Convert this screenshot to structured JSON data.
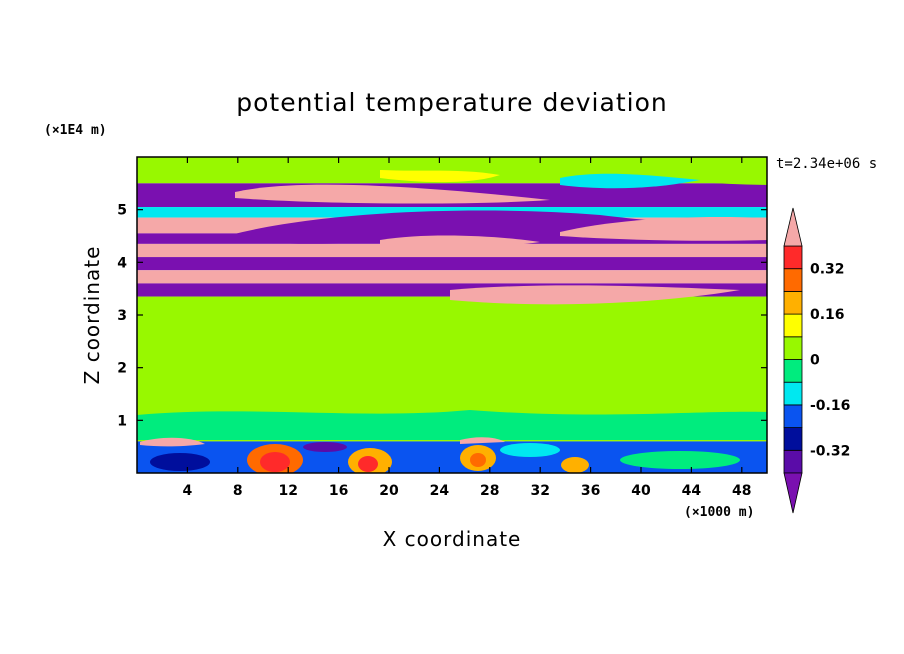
{
  "chart_data": {
    "type": "heatmap",
    "title": "potential temperature deviation",
    "xlabel": "X coordinate",
    "ylabel": "Z coordinate",
    "x_unit": "(×1000 m)",
    "y_unit": "(×1E4 m)",
    "time_label": "t=2.34e+06 s",
    "xlim": [
      0,
      50
    ],
    "ylim": [
      0,
      6
    ],
    "x_ticks": [
      4,
      8,
      12,
      16,
      20,
      24,
      28,
      32,
      36,
      40,
      44,
      48
    ],
    "y_ticks": [
      1,
      2,
      3,
      4,
      5
    ],
    "colorbar": {
      "levels": [
        -0.4,
        -0.32,
        -0.24,
        -0.16,
        -0.08,
        0,
        0.08,
        0.16,
        0.24,
        0.32,
        0.4
      ],
      "labels": [
        "-0.32",
        "-0.16",
        "0",
        "0.16",
        "0.32"
      ],
      "label_values": [
        -0.32,
        -0.16,
        0,
        0.16,
        0.32
      ],
      "colors": [
        "#5a0ca8",
        "#000e9c",
        "#0a54f0",
        "#00e8f0",
        "#00ec7e",
        "#98f800",
        "#ffff00",
        "#ffb000",
        "#ff6a00",
        "#ff2a2a"
      ],
      "under_color": "#7a10b0",
      "over_color": "#f5a8a8",
      "extend": "both"
    },
    "bands": [
      {
        "z": [
          5.5,
          6.0
        ],
        "value": 0.0
      },
      {
        "z": [
          5.05,
          5.5
        ],
        "value": -0.45
      },
      {
        "z": [
          4.85,
          5.05
        ],
        "value": -0.1
      },
      {
        "z": [
          4.55,
          4.85
        ],
        "value": 0.45
      },
      {
        "z": [
          4.35,
          4.55
        ],
        "value": -0.45
      },
      {
        "z": [
          4.1,
          4.35
        ],
        "value": 0.45
      },
      {
        "z": [
          3.85,
          4.1
        ],
        "value": -0.45
      },
      {
        "z": [
          3.6,
          3.85
        ],
        "value": 0.45
      },
      {
        "z": [
          3.35,
          3.6
        ],
        "value": -0.45
      },
      {
        "z": [
          0.6,
          3.35
        ],
        "value": 0.0
      },
      {
        "z": [
          0.0,
          0.6
        ],
        "value": -0.2
      }
    ],
    "grid": false
  }
}
